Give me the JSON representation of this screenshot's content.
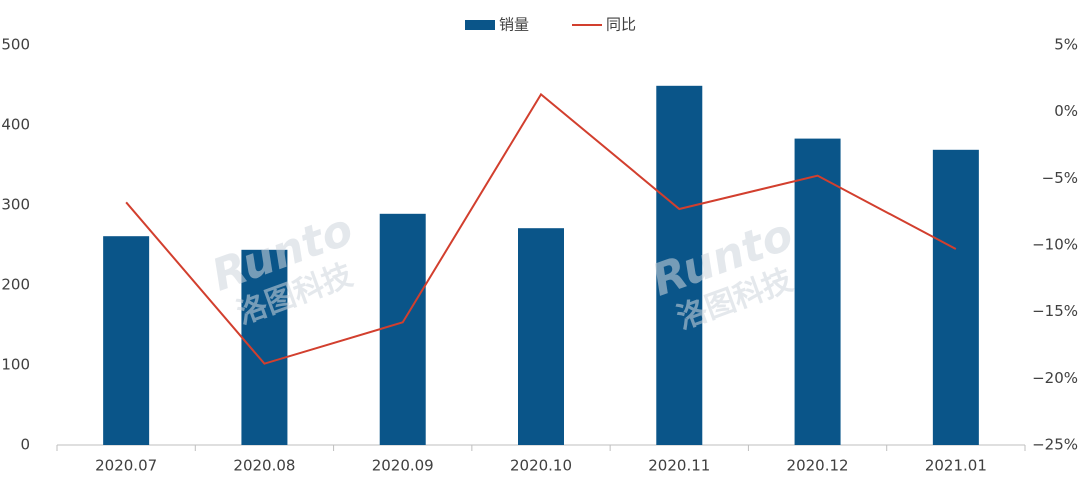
{
  "chart_data": {
    "type": "bar-line",
    "categories": [
      "2020.07",
      "2020.08",
      "2020.09",
      "2020.10",
      "2020.11",
      "2020.12",
      "2021.01"
    ],
    "series": [
      {
        "name": "销量",
        "color": "#0a5589",
        "type": "bar",
        "values": [
          261,
          244,
          289,
          271,
          449,
          383,
          369
        ]
      },
      {
        "name": "同比",
        "color": "#d23f2e",
        "type": "line",
        "axis": "y2",
        "values": [
          -6.8,
          -18.9,
          -15.8,
          1.3,
          -7.3,
          -4.8,
          -10.3
        ]
      }
    ],
    "ylim": [
      0,
      500
    ],
    "yticks": [
      0,
      100,
      200,
      300,
      400,
      500
    ],
    "y2lim": [
      -25,
      5
    ],
    "y2ticks": [
      {
        "value": -25,
        "label": "−25%"
      },
      {
        "value": -20,
        "label": "−20%"
      },
      {
        "value": -15,
        "label": "−15%"
      },
      {
        "value": -10,
        "label": "−10%"
      },
      {
        "value": -5,
        "label": "−5%"
      },
      {
        "value": 0,
        "label": "0%"
      },
      {
        "value": 5,
        "label": "5%"
      }
    ],
    "watermark": [
      "Runto",
      "洛图科技"
    ],
    "legend": "top"
  }
}
